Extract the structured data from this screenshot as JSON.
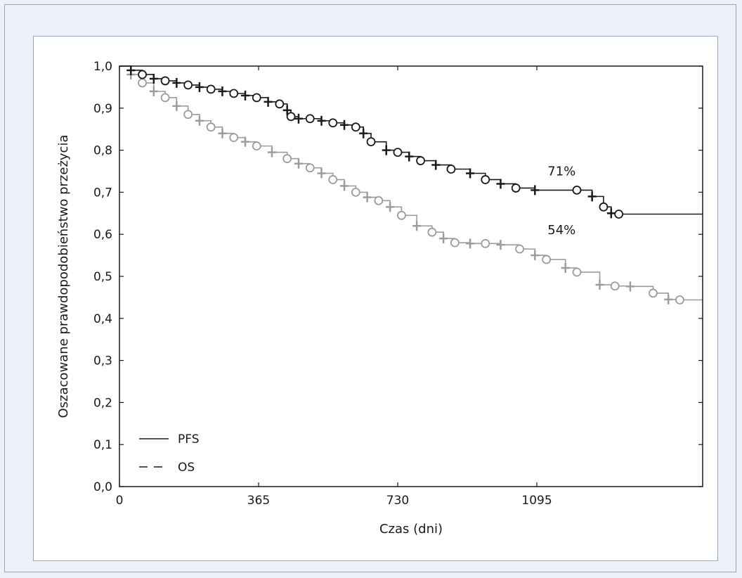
{
  "chart_data": {
    "type": "line",
    "title": "",
    "xlabel": "Czas (dni)",
    "ylabel": "Oszacowane prawdopodobieństwo przeżycia",
    "xlim": [
      0,
      1530
    ],
    "ylim": [
      0,
      1
    ],
    "xticks": [
      0,
      365,
      730,
      1095
    ],
    "xtick_labels": [
      "0",
      "365",
      "730",
      "1095"
    ],
    "yticks": [
      0,
      0.1,
      0.2,
      0.3,
      0.4,
      0.5,
      0.6,
      0.7,
      0.8,
      0.9,
      1.0
    ],
    "ytick_labels": [
      "0,0",
      "0,1",
      "0,2",
      "0,3",
      "0,4",
      "0,5",
      "0,6",
      "0,7",
      "0,8",
      "0,9",
      "1,0"
    ],
    "grid": false,
    "legend_position": "bottom-left",
    "legend": [
      {
        "label": "PFS",
        "style": "solid"
      },
      {
        "label": "OS",
        "style": "dashed"
      }
    ],
    "series": [
      {
        "name": "OS",
        "color": "#1a1a1a",
        "x": [
          0,
          30,
          60,
          90,
          120,
          150,
          180,
          210,
          240,
          270,
          300,
          330,
          360,
          390,
          420,
          440,
          450,
          470,
          500,
          530,
          560,
          590,
          620,
          640,
          660,
          700,
          730,
          760,
          790,
          830,
          870,
          920,
          960,
          1000,
          1040,
          1090,
          1200,
          1240,
          1270,
          1290,
          1310,
          1530
        ],
        "y": [
          1.0,
          0.99,
          0.98,
          0.97,
          0.965,
          0.96,
          0.955,
          0.95,
          0.945,
          0.94,
          0.935,
          0.93,
          0.925,
          0.915,
          0.91,
          0.895,
          0.88,
          0.875,
          0.875,
          0.87,
          0.865,
          0.86,
          0.855,
          0.84,
          0.82,
          0.8,
          0.795,
          0.785,
          0.775,
          0.765,
          0.755,
          0.745,
          0.73,
          0.72,
          0.71,
          0.705,
          0.705,
          0.69,
          0.665,
          0.65,
          0.648,
          0.648
        ],
        "annotation": "71%",
        "annotation_x": 1160,
        "annotation_y": 0.74
      },
      {
        "name": "PFS",
        "color": "#9c9c9c",
        "x": [
          0,
          30,
          60,
          90,
          120,
          150,
          180,
          210,
          240,
          270,
          300,
          330,
          360,
          400,
          440,
          470,
          500,
          530,
          560,
          590,
          620,
          650,
          680,
          710,
          740,
          780,
          820,
          850,
          880,
          920,
          960,
          1000,
          1050,
          1090,
          1120,
          1170,
          1200,
          1260,
          1300,
          1340,
          1400,
          1440,
          1470,
          1530
        ],
        "y": [
          1.0,
          0.98,
          0.96,
          0.94,
          0.925,
          0.905,
          0.885,
          0.87,
          0.855,
          0.84,
          0.83,
          0.82,
          0.81,
          0.795,
          0.78,
          0.768,
          0.758,
          0.745,
          0.73,
          0.715,
          0.7,
          0.688,
          0.68,
          0.665,
          0.645,
          0.62,
          0.605,
          0.59,
          0.58,
          0.578,
          0.578,
          0.575,
          0.565,
          0.55,
          0.54,
          0.52,
          0.51,
          0.48,
          0.477,
          0.476,
          0.46,
          0.445,
          0.444,
          0.444
        ],
        "annotation": "54%",
        "annotation_x": 1160,
        "annotation_y": 0.6
      }
    ]
  }
}
